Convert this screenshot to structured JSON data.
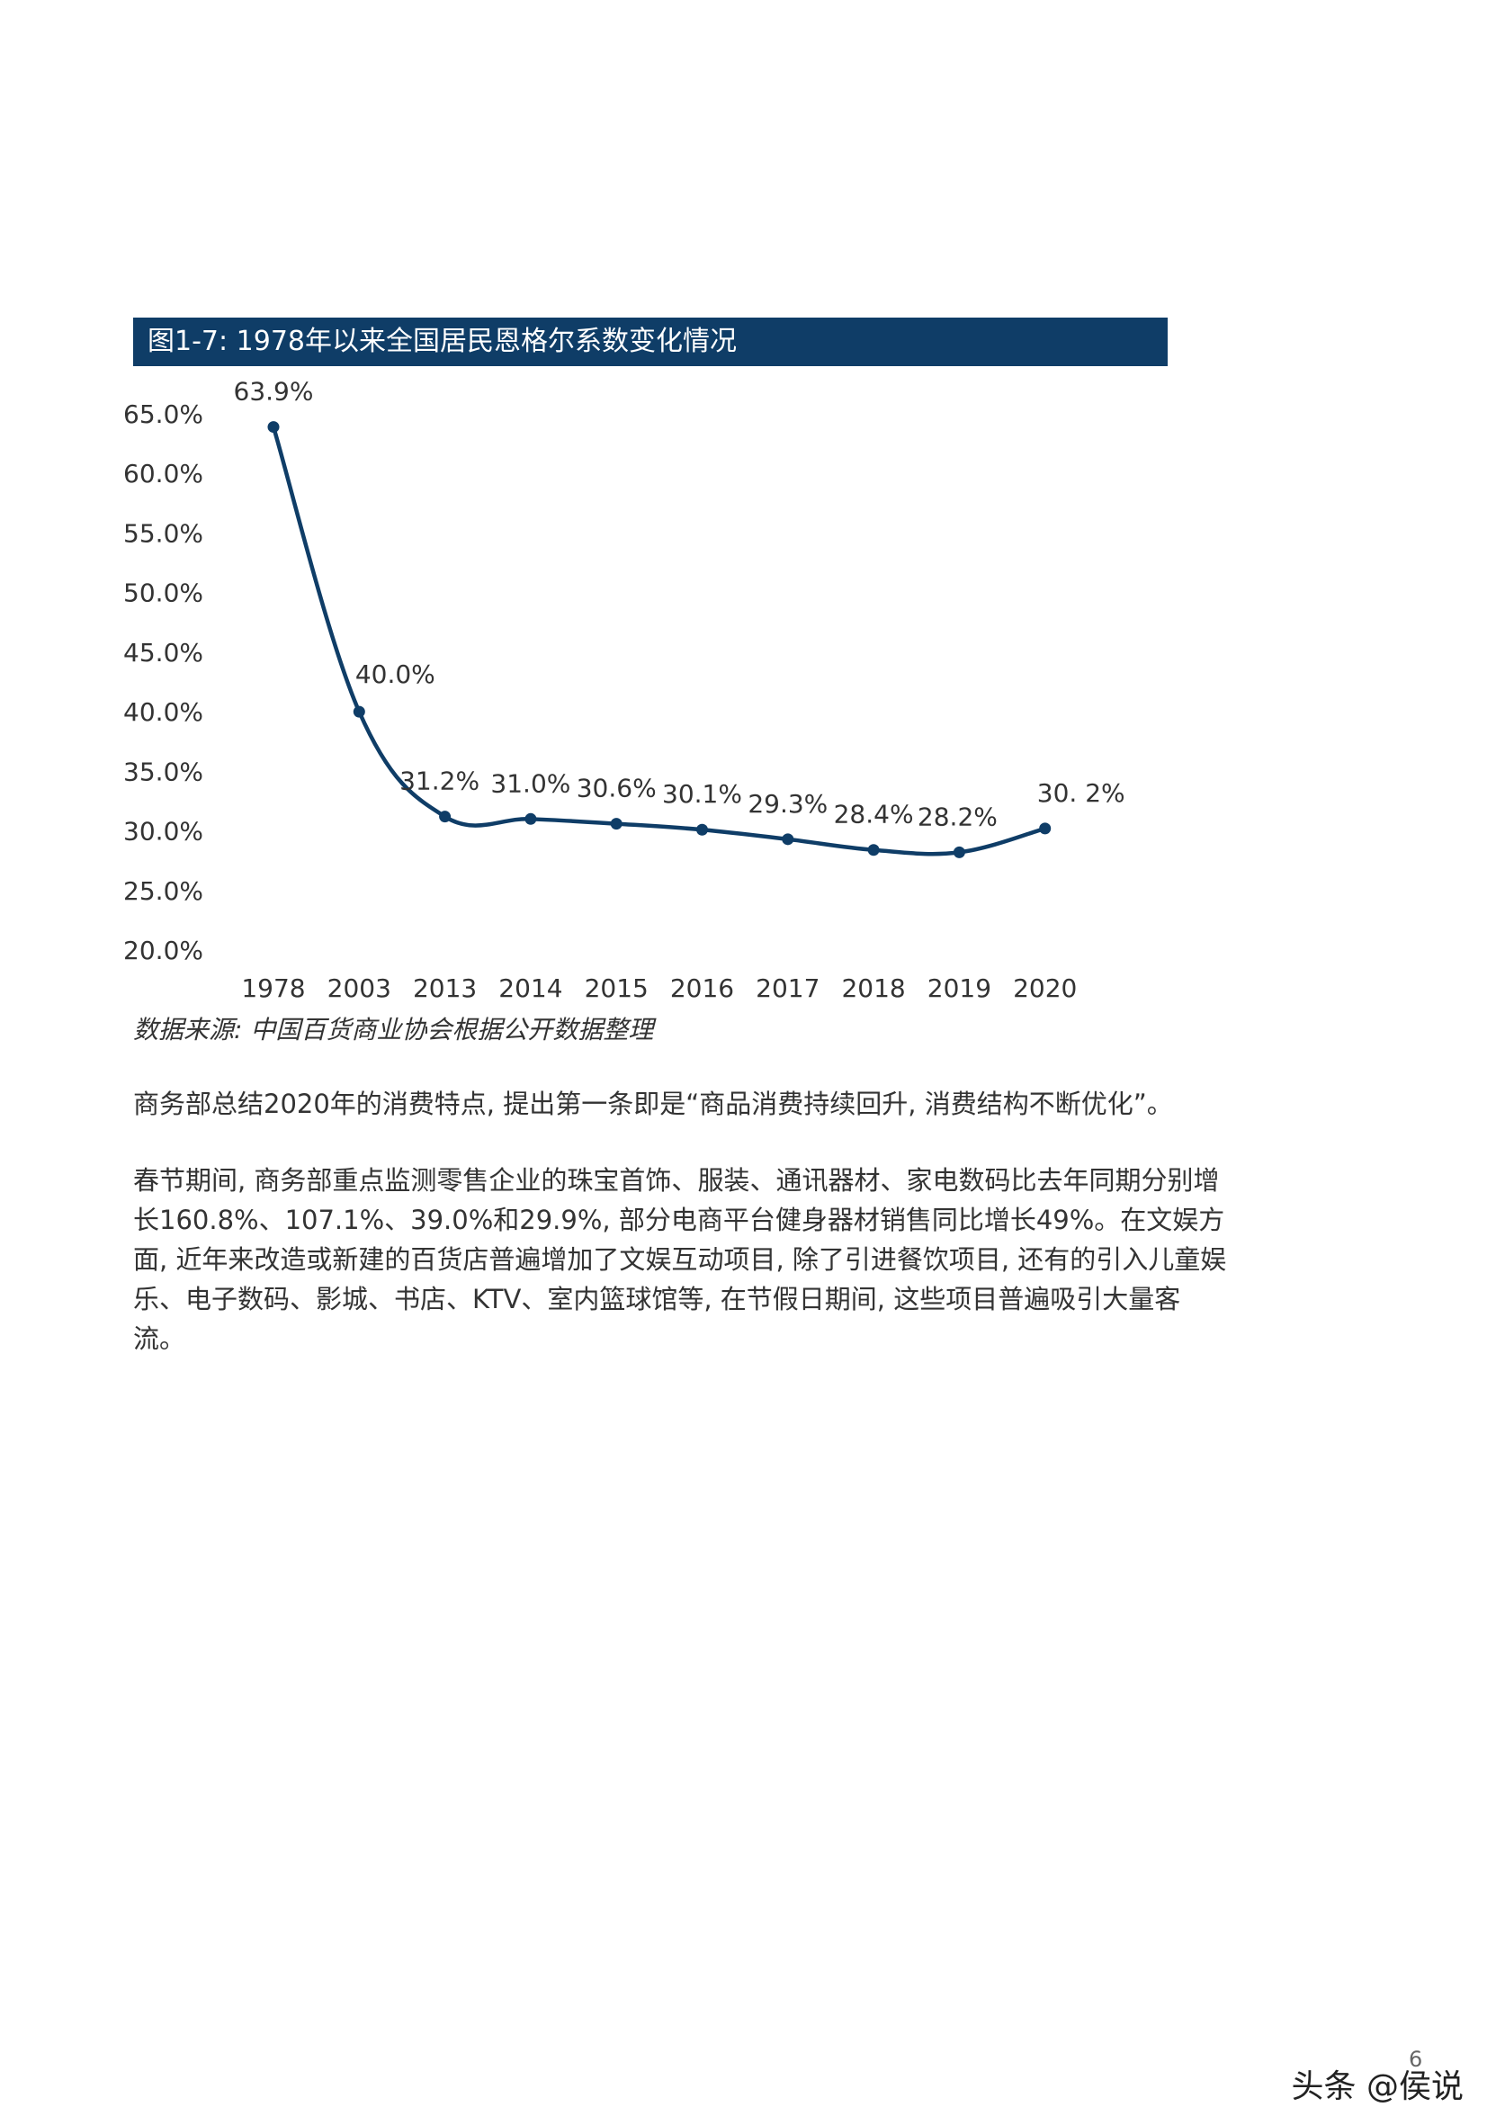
{
  "figure": {
    "title": "图1-7: 1978年以来全国居民恩格尔系数变化情况",
    "source": "数据来源: 中国百货商业协会根据公开数据整理"
  },
  "chart_data": {
    "type": "line",
    "title": "图1-7: 1978年以来全国居民恩格尔系数变化情况",
    "categories": [
      "1978",
      "2003",
      "2013",
      "2014",
      "2015",
      "2016",
      "2017",
      "2018",
      "2019",
      "2020"
    ],
    "series": [
      {
        "values": [
          63.9,
          40.0,
          31.2,
          31.0,
          30.6,
          30.1,
          29.3,
          28.4,
          28.2,
          30.2
        ],
        "data_labels": [
          "63.9%",
          "40.0%",
          "31.2%",
          "31.0%",
          "30.6%",
          "30.1%",
          "29.3%",
          "28.4%",
          "28.2%",
          "30. 2%"
        ]
      }
    ],
    "yticks": [
      20.0,
      25.0,
      30.0,
      35.0,
      40.0,
      45.0,
      50.0,
      55.0,
      60.0,
      65.0
    ],
    "ytick_labels": [
      "20.0%",
      "25.0%",
      "30.0%",
      "35.0%",
      "40.0%",
      "45.0%",
      "50.0%",
      "55.0%",
      "60.0%",
      "65.0%"
    ],
    "ylim": [
      20,
      65
    ],
    "xlabel": "",
    "ylabel": "",
    "grid": false,
    "line_color": "#0f3d67",
    "smooth": true
  },
  "paragraphs": [
    "商务部总结2020年的消费特点, 提出第一条即是“商品消费持续回升, 消费结构不断优化”。",
    "春节期间, 商务部重点监测零售企业的珠宝首饰、服装、通讯器材、家电数码比去年同期分别增长160.8%、107.1%、39.0%和29.9%, 部分电商平台健身器材销售同比增长49%。在文娱方面, 近年来改造或新建的百货店普遍增加了文娱互动项目, 除了引进餐饮项目, 还有的引入儿童娱乐、电子数码、影城、书店、KTV、室内篮球馆等, 在节假日期间, 这些项目普遍吸引大量客流。"
  ],
  "page_number": "6",
  "watermark": "头条 @侯说"
}
